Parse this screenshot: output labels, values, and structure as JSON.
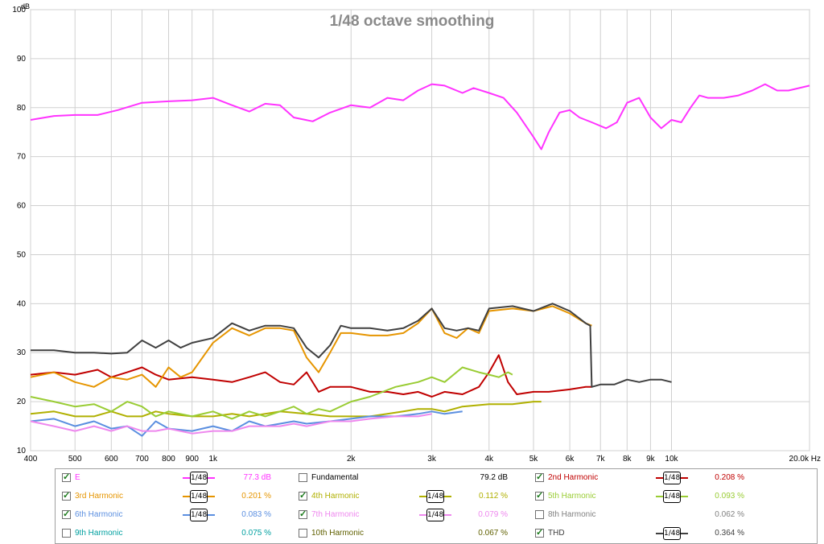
{
  "chart_data": {
    "type": "line",
    "title": "1/48 octave smoothing",
    "ylabel": "dB",
    "xunit": "Hz",
    "x_scale": "log",
    "xlim": [
      400,
      20000
    ],
    "ylim": [
      10,
      100
    ],
    "grid": true,
    "y_ticks": [
      "10",
      "20",
      "30",
      "40",
      "50",
      "60",
      "70",
      "80",
      "90",
      "100"
    ],
    "x_ticks": [
      {
        "value": 400,
        "label": "400"
      },
      {
        "value": 500,
        "label": "500"
      },
      {
        "value": 600,
        "label": "600"
      },
      {
        "value": 700,
        "label": "700"
      },
      {
        "value": 800,
        "label": "800"
      },
      {
        "value": 900,
        "label": "900"
      },
      {
        "value": 1000,
        "label": "1k"
      },
      {
        "value": 2000,
        "label": "2k"
      },
      {
        "value": 3000,
        "label": "3k"
      },
      {
        "value": 4000,
        "label": "4k"
      },
      {
        "value": 5000,
        "label": "5k"
      },
      {
        "value": 6000,
        "label": "6k"
      },
      {
        "value": 7000,
        "label": "7k"
      },
      {
        "value": 8000,
        "label": "8k"
      },
      {
        "value": 9000,
        "label": "9k"
      },
      {
        "value": 10000,
        "label": "10k"
      },
      {
        "value": 20000,
        "label": "20.0k Hz"
      }
    ],
    "series": [
      {
        "name": "E",
        "color": "#ff33ff",
        "x": [
          400,
          450,
          500,
          560,
          620,
          700,
          800,
          900,
          1000,
          1100,
          1200,
          1300,
          1400,
          1500,
          1650,
          1800,
          2000,
          2200,
          2400,
          2600,
          2800,
          3000,
          3200,
          3500,
          3700,
          4000,
          4300,
          4600,
          5000,
          5200,
          5400,
          5700,
          6000,
          6300,
          6700,
          7200,
          7600,
          8000,
          8500,
          9000,
          9500,
          10000,
          10500,
          11000,
          11500,
          12000,
          13000,
          14000,
          15000,
          16000,
          17000,
          18000,
          19000,
          20000
        ],
        "y": [
          77.5,
          78.3,
          78.5,
          78.5,
          79.5,
          81,
          81.3,
          81.5,
          82,
          80.5,
          79.2,
          80.8,
          80.5,
          78,
          77.2,
          79,
          80.5,
          80,
          82,
          81.5,
          83.5,
          84.8,
          84.5,
          83,
          84,
          83,
          82,
          79,
          74,
          71.5,
          75,
          79,
          79.5,
          78,
          77,
          75.8,
          77,
          81,
          82,
          78,
          75.8,
          77.5,
          77,
          80,
          82.5,
          82,
          82,
          82.5,
          83.5,
          84.8,
          83.5,
          83.5,
          84,
          84.5
        ]
      },
      {
        "name": "2nd Harmonic",
        "color": "#c00000",
        "x": [
          400,
          450,
          500,
          560,
          600,
          650,
          700,
          750,
          800,
          900,
          1000,
          1100,
          1200,
          1300,
          1400,
          1500,
          1600,
          1700,
          1800,
          2000,
          2200,
          2400,
          2600,
          2800,
          3000,
          3200,
          3500,
          3800,
          4000,
          4200,
          4400,
          4600,
          5000,
          5400,
          6000,
          6500,
          6700
        ],
        "y": [
          25.5,
          26,
          25.5,
          26.5,
          25,
          26,
          27,
          25.5,
          24.5,
          25,
          24.5,
          24,
          25,
          26,
          24,
          23.5,
          26,
          22,
          23,
          23,
          22,
          22,
          21.5,
          22,
          21,
          22,
          21.5,
          23,
          26,
          29.5,
          24,
          21.5,
          22,
          22,
          22.5,
          23,
          23
        ]
      },
      {
        "name": "3rd Harmonic",
        "color": "#e69500",
        "x": [
          400,
          450,
          500,
          550,
          600,
          650,
          700,
          750,
          800,
          850,
          900,
          1000,
          1100,
          1200,
          1300,
          1400,
          1500,
          1600,
          1700,
          1800,
          1900,
          2000,
          2200,
          2400,
          2600,
          2800,
          3000,
          3200,
          3400,
          3600,
          3800,
          4000,
          4500,
          5000,
          5500,
          6000,
          6500,
          6700
        ],
        "y": [
          25,
          26,
          24,
          23,
          25,
          24.5,
          25.5,
          23,
          27,
          25,
          26,
          32,
          35,
          33.5,
          35,
          35,
          34.5,
          29,
          26,
          30,
          34,
          34,
          33.5,
          33.5,
          34,
          36,
          39,
          34,
          33,
          35,
          34,
          38.5,
          39,
          38.5,
          39.5,
          38,
          36,
          35.5
        ]
      },
      {
        "name": "4th Harmonic",
        "color": "#b0b000",
        "x": [
          400,
          450,
          500,
          550,
          600,
          650,
          700,
          750,
          800,
          900,
          1000,
          1100,
          1200,
          1400,
          1600,
          1800,
          2000,
          2200,
          2400,
          2600,
          2800,
          3000,
          3200,
          3500,
          4000,
          4500,
          5000,
          5200
        ],
        "y": [
          17.5,
          18,
          17,
          17,
          18,
          17,
          17,
          18,
          17.5,
          17,
          17,
          17.5,
          17,
          18,
          17.5,
          17,
          17,
          17,
          17.5,
          18,
          18.5,
          18.5,
          18,
          19,
          19.5,
          19.5,
          20,
          20
        ]
      },
      {
        "name": "5th Harmonic",
        "color": "#99cc33",
        "x": [
          400,
          450,
          500,
          550,
          600,
          650,
          700,
          750,
          800,
          900,
          1000,
          1100,
          1200,
          1300,
          1400,
          1500,
          1600,
          1700,
          1800,
          2000,
          2200,
          2500,
          2800,
          3000,
          3200,
          3500,
          3800,
          4000,
          4200,
          4400,
          4500
        ],
        "y": [
          21,
          20,
          19,
          19.5,
          18,
          20,
          19,
          17,
          18,
          17,
          18,
          16.5,
          18,
          17,
          18,
          19,
          17.5,
          18.5,
          18,
          20,
          21,
          23,
          24,
          25,
          24,
          27,
          26,
          25.5,
          25,
          26,
          25.5
        ]
      },
      {
        "name": "6th Harmonic",
        "color": "#5b8fe0",
        "x": [
          400,
          450,
          500,
          550,
          600,
          650,
          700,
          750,
          800,
          900,
          1000,
          1100,
          1200,
          1300,
          1400,
          1500,
          1600,
          1800,
          2000,
          2200,
          2500,
          2800,
          3000,
          3200,
          3500
        ],
        "y": [
          16,
          16.5,
          15,
          16,
          14.5,
          15,
          13,
          16,
          14.5,
          14,
          15,
          14,
          16,
          15,
          15.5,
          16,
          15.5,
          16,
          16.5,
          17,
          17,
          17.5,
          18,
          17.5,
          18
        ]
      },
      {
        "name": "7th Harmonic",
        "color": "#ee88ee",
        "x": [
          400,
          450,
          500,
          550,
          600,
          650,
          700,
          750,
          800,
          900,
          1000,
          1100,
          1200,
          1300,
          1400,
          1500,
          1600,
          1800,
          2000,
          2200,
          2500,
          2800,
          3000
        ],
        "y": [
          16,
          15,
          14,
          15,
          14,
          15,
          14,
          14,
          14.5,
          13.5,
          14,
          14,
          15,
          15,
          15,
          15.5,
          15,
          16,
          16,
          16.5,
          17,
          17,
          17.5
        ]
      },
      {
        "name": "THD",
        "color": "#404040",
        "x": [
          400,
          450,
          500,
          550,
          600,
          650,
          700,
          750,
          800,
          850,
          900,
          1000,
          1100,
          1200,
          1300,
          1400,
          1500,
          1600,
          1700,
          1800,
          1900,
          2000,
          2200,
          2400,
          2600,
          2800,
          3000,
          3200,
          3400,
          3600,
          3800,
          4000,
          4500,
          5000,
          5500,
          6000,
          6500,
          6650,
          6700,
          7000,
          7500,
          8000,
          8500,
          9000,
          9500,
          10000
        ],
        "y": [
          30.5,
          30.5,
          30,
          30,
          29.8,
          30,
          32.5,
          31,
          32.5,
          31,
          32,
          33,
          36,
          34.5,
          35.5,
          35.5,
          35,
          31,
          29,
          31.5,
          35.5,
          35,
          35,
          34.5,
          35,
          36.5,
          39,
          35,
          34.5,
          35,
          34.5,
          39,
          39.5,
          38.5,
          40,
          38.5,
          36,
          35.5,
          23,
          23.5,
          23.5,
          24.5,
          24,
          24.5,
          24.5,
          24
        ]
      }
    ],
    "legend": [
      {
        "name": "E",
        "checked": true,
        "color": "#ff33ff",
        "smoothing": "1/48",
        "value": "77.3 dB"
      },
      {
        "name": "Fundamental",
        "checked": false,
        "color": "#000000",
        "smoothing": "",
        "value": "79.2 dB"
      },
      {
        "name": "2nd Harmonic",
        "checked": true,
        "color": "#c00000",
        "smoothing": "1/48",
        "value": "0.208 %"
      },
      {
        "name": "3rd Harmonic",
        "checked": true,
        "color": "#e69500",
        "smoothing": "1/48",
        "value": "0.201 %"
      },
      {
        "name": "4th Harmonic",
        "checked": true,
        "color": "#b0b000",
        "smoothing": "1/48",
        "value": "0.112 %"
      },
      {
        "name": "5th Harmonic",
        "checked": true,
        "color": "#99cc33",
        "smoothing": "1/48",
        "value": "0.093 %"
      },
      {
        "name": "6th Harmonic",
        "checked": true,
        "color": "#5b8fe0",
        "smoothing": "1/48",
        "value": "0.083 %"
      },
      {
        "name": "7th Harmonic",
        "checked": true,
        "color": "#ee88ee",
        "smoothing": "1/48",
        "value": "0.079 %"
      },
      {
        "name": "8th Harmonic",
        "checked": false,
        "color": "#808080",
        "smoothing": "",
        "value": "0.062 %"
      },
      {
        "name": "9th Harmonic",
        "checked": false,
        "color": "#00a0a0",
        "smoothing": "",
        "value": "0.075 %"
      },
      {
        "name": "10th Harmonic",
        "checked": false,
        "color": "#606000",
        "smoothing": "",
        "value": "0.067 %"
      },
      {
        "name": "THD",
        "checked": true,
        "color": "#404040",
        "smoothing": "1/48",
        "value": "0.364 %"
      }
    ]
  }
}
